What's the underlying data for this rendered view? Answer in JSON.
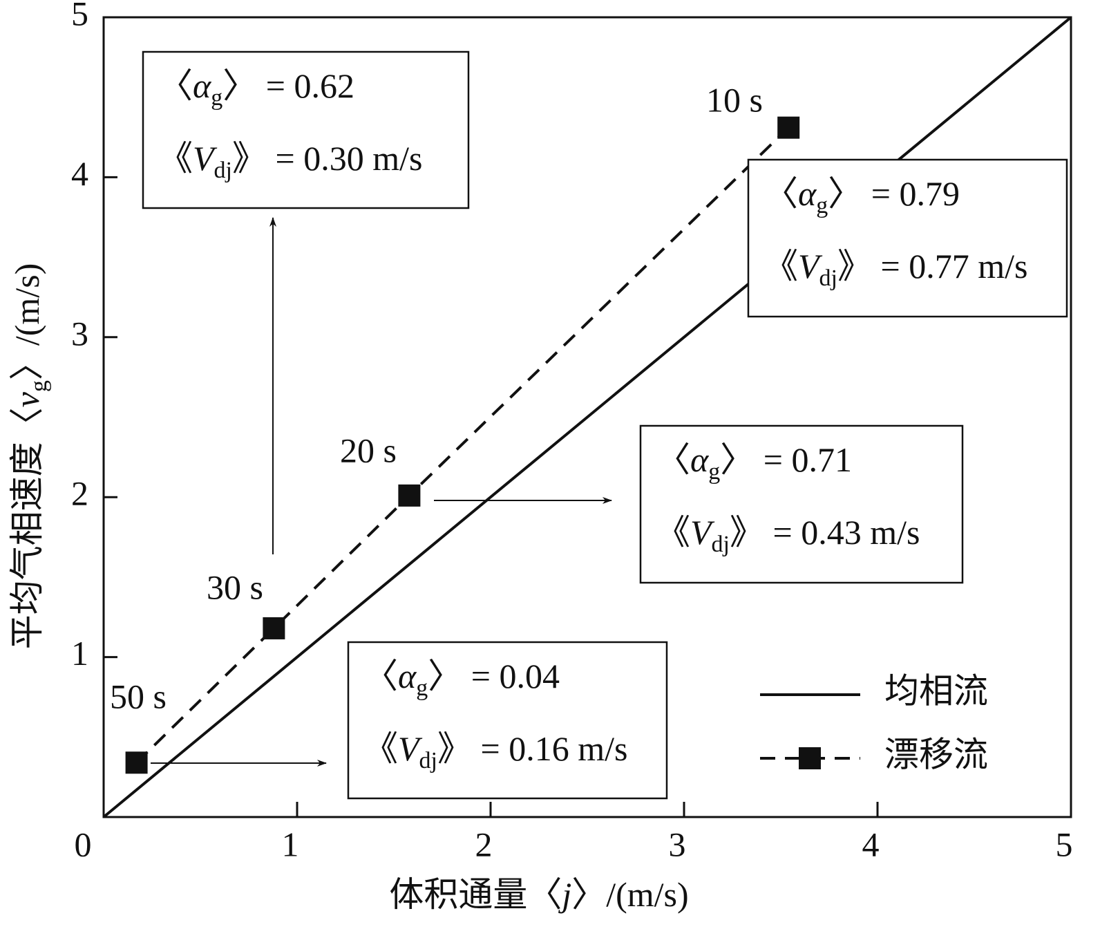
{
  "chart_data": {
    "type": "line",
    "x_label": [
      "体积通量〈",
      "j",
      "〉/(m/s)"
    ],
    "y_label": [
      "平均气相速度〈",
      "v",
      "g",
      "〉/(m/s)"
    ],
    "xlim": [
      0,
      5
    ],
    "ylim": [
      0,
      5
    ],
    "xticks": [
      0,
      1,
      2,
      3,
      4,
      5
    ],
    "yticks": [
      1,
      2,
      3,
      4,
      5
    ],
    "legend": "lower right",
    "series": [
      {
        "name": "均相流",
        "color": "#111111",
        "style": "solid",
        "x": [
          0,
          5
        ],
        "values": [
          0,
          5
        ]
      },
      {
        "name": "漂移流",
        "color": "#111111",
        "style": "dashed",
        "marker": "square",
        "x": [
          0.17,
          0.88,
          1.58,
          3.54
        ],
        "values": [
          0.34,
          1.18,
          2.01,
          4.31
        ]
      }
    ],
    "annotations": [
      {
        "label": "50 s",
        "lines": [
          [
            "〈",
            "α",
            "g",
            "〉 = 0.04"
          ],
          [
            "《",
            "V",
            "dj",
            "》 = 0.16 m/s"
          ]
        ]
      },
      {
        "label": "30 s",
        "lines": [
          [
            "〈",
            "α",
            "g",
            "〉 = 0.62"
          ],
          [
            "《",
            "V",
            "dj",
            "》 = 0.30 m/s"
          ]
        ]
      },
      {
        "label": "20 s",
        "lines": [
          [
            "〈",
            "α",
            "g",
            "〉 = 0.71"
          ],
          [
            "《",
            "V",
            "dj",
            "》 = 0.43 m/s"
          ]
        ]
      },
      {
        "label": "10 s",
        "lines": [
          [
            "〈",
            "α",
            "g",
            "〉 = 0.79"
          ],
          [
            "《",
            "V",
            "dj",
            "》 = 0.77 m/s"
          ]
        ]
      }
    ]
  }
}
